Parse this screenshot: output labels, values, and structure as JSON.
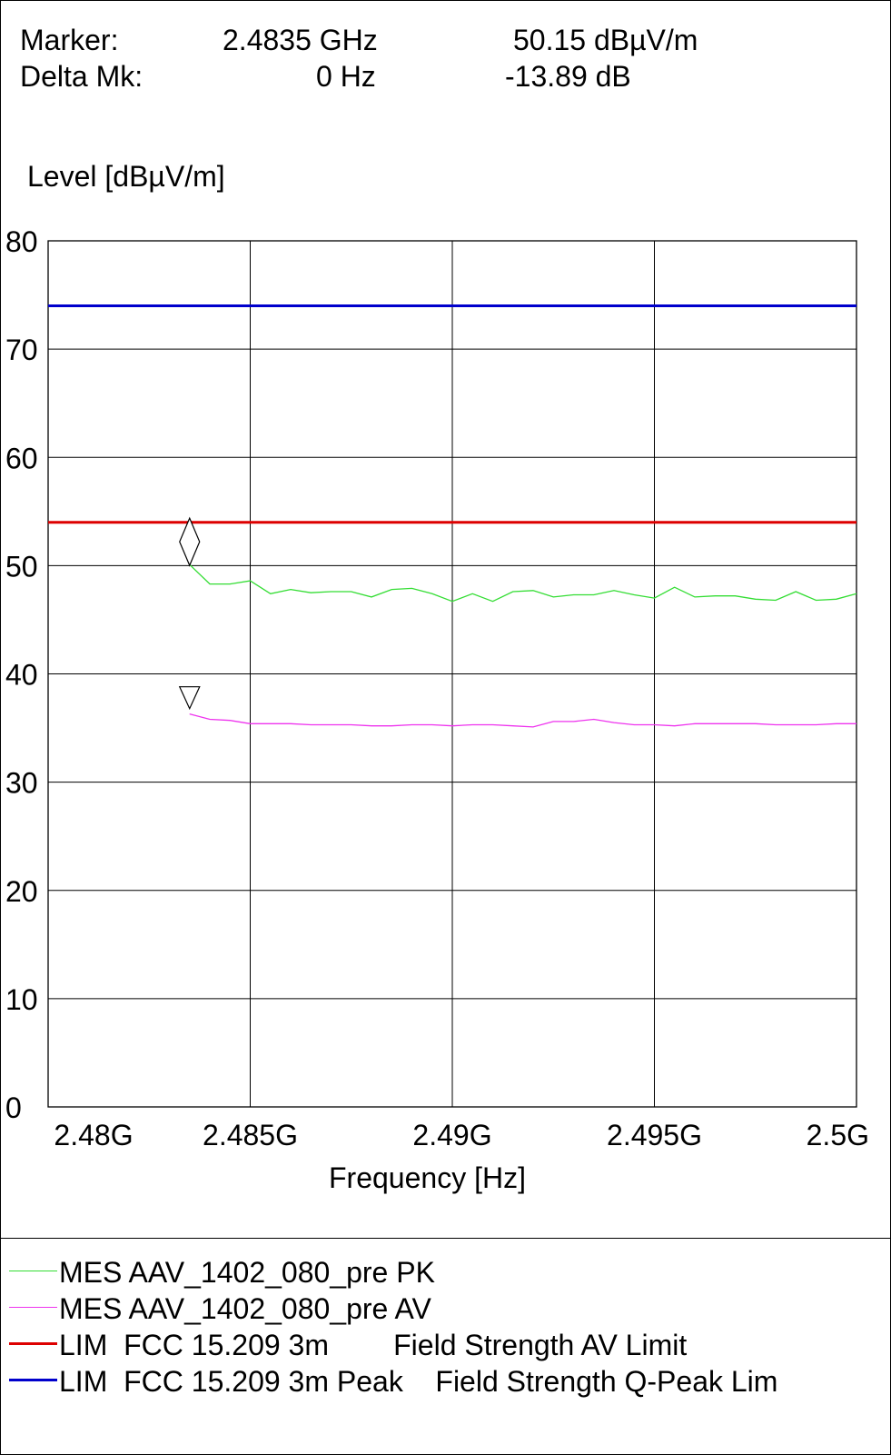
{
  "marker": {
    "label": "Marker:",
    "freq": "2.4835 GHz",
    "level": "50.15 dBµV/m",
    "delta_label": "Delta Mk:",
    "delta_freq": "0 Hz",
    "delta_level": "-13.89 dB"
  },
  "chart_data": {
    "type": "line",
    "xlabel": "Frequency [Hz]",
    "ylabel": "Level [dBµV/m]",
    "xlim": [
      2.48,
      2.5
    ],
    "ylim": [
      0,
      80
    ],
    "grid": true,
    "x_ticks": [
      2.48,
      2.485,
      2.49,
      2.495,
      2.5
    ],
    "x_tick_labels": [
      "2.48G",
      "2.485G",
      "2.49G",
      "2.495G",
      "2.5G"
    ],
    "y_ticks": [
      0,
      10,
      20,
      30,
      40,
      50,
      60,
      70,
      80
    ],
    "y_tick_labels": [
      "0",
      "10",
      "20",
      "30",
      "40",
      "50",
      "60",
      "70",
      "80"
    ],
    "series": [
      {
        "name": "MES  AAV_1402_080_pre PK",
        "color": "#33dd33",
        "x": [
          2.4835,
          2.484,
          2.4845,
          2.485,
          2.4855,
          2.486,
          2.4865,
          2.487,
          2.4875,
          2.488,
          2.4885,
          2.489,
          2.4895,
          2.49,
          2.4905,
          2.491,
          2.4915,
          2.492,
          2.4925,
          2.493,
          2.4935,
          2.494,
          2.4945,
          2.495,
          2.4955,
          2.496,
          2.4965,
          2.497,
          2.4975,
          2.498,
          2.4985,
          2.499,
          2.4995,
          2.5
        ],
        "y": [
          50.1,
          48.3,
          48.3,
          48.6,
          47.4,
          47.8,
          47.5,
          47.6,
          47.6,
          47.1,
          47.8,
          47.9,
          47.4,
          46.7,
          47.4,
          46.7,
          47.6,
          47.7,
          47.1,
          47.3,
          47.3,
          47.7,
          47.3,
          47.0,
          48.0,
          47.1,
          47.2,
          47.2,
          46.9,
          46.8,
          47.6,
          46.8,
          46.9,
          47.4
        ]
      },
      {
        "name": "MES  AAV_1402_080_pre AV",
        "color": "#ee33ee",
        "x": [
          2.4835,
          2.484,
          2.4845,
          2.485,
          2.4855,
          2.486,
          2.4865,
          2.487,
          2.4875,
          2.488,
          2.4885,
          2.489,
          2.4895,
          2.49,
          2.4905,
          2.491,
          2.4915,
          2.492,
          2.4925,
          2.493,
          2.4935,
          2.494,
          2.4945,
          2.495,
          2.4955,
          2.496,
          2.4965,
          2.497,
          2.4975,
          2.498,
          2.4985,
          2.499,
          2.4995,
          2.5
        ],
        "y": [
          36.3,
          35.8,
          35.7,
          35.4,
          35.4,
          35.4,
          35.3,
          35.3,
          35.3,
          35.2,
          35.2,
          35.3,
          35.3,
          35.2,
          35.3,
          35.3,
          35.2,
          35.1,
          35.6,
          35.6,
          35.8,
          35.5,
          35.3,
          35.3,
          35.2,
          35.4,
          35.4,
          35.4,
          35.4,
          35.3,
          35.3,
          35.3,
          35.4,
          35.4
        ]
      },
      {
        "name": "LIM  FCC 15.209 3m        Field Strength AV Limit",
        "color": "#dd0000",
        "x": [
          2.48,
          2.5
        ],
        "y": [
          54,
          54
        ]
      },
      {
        "name": "LIM  FCC 15.209 3m Peak    Field Strength Q-Peak Lim",
        "color": "#0000cc",
        "x": [
          2.48,
          2.5
        ],
        "y": [
          74,
          74
        ]
      }
    ],
    "markers": [
      {
        "shape": "diamond",
        "x": 2.4835,
        "y": 52.2
      },
      {
        "shape": "triangle-down",
        "x": 2.4835,
        "y": 37.8
      }
    ],
    "legend_position": "bottom"
  }
}
